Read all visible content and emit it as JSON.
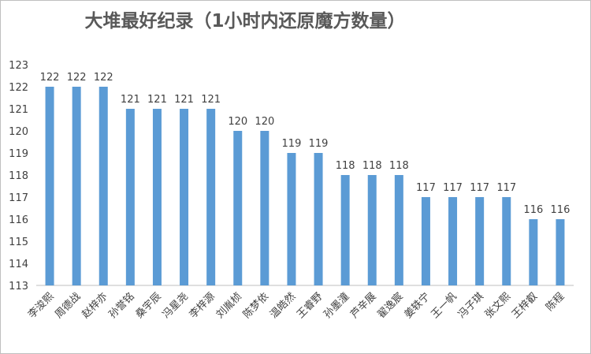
{
  "chart_data": {
    "type": "bar",
    "title": "大堆最好纪录（1小时内还原魔方数量）",
    "xlabel": "",
    "ylabel": "",
    "ylim": [
      113,
      123
    ],
    "yticks": [
      113,
      114,
      115,
      116,
      117,
      118,
      119,
      120,
      121,
      122,
      123
    ],
    "grid": false,
    "legend": "none",
    "categories": [
      "李浚熙",
      "周德战",
      "赵梓亦",
      "孙誉铭",
      "桑宇辰",
      "冯星尧",
      "李梓源",
      "刘胤桢",
      "陈梦依",
      "温皓然",
      "王睿野",
      "孙墨潼",
      "芦辛展",
      "翟逸宸",
      "姜轶宁",
      "王一帆",
      "冯子琪",
      "张文熙",
      "王梓叡",
      "陈程"
    ],
    "values": [
      122,
      122,
      122,
      121,
      121,
      121,
      121,
      120,
      120,
      119,
      119,
      118,
      118,
      118,
      117,
      117,
      117,
      117,
      116,
      116
    ],
    "bar_color": "#5b9bd5",
    "axis_color": "#bfbfbf",
    "text_color": "#404040"
  }
}
